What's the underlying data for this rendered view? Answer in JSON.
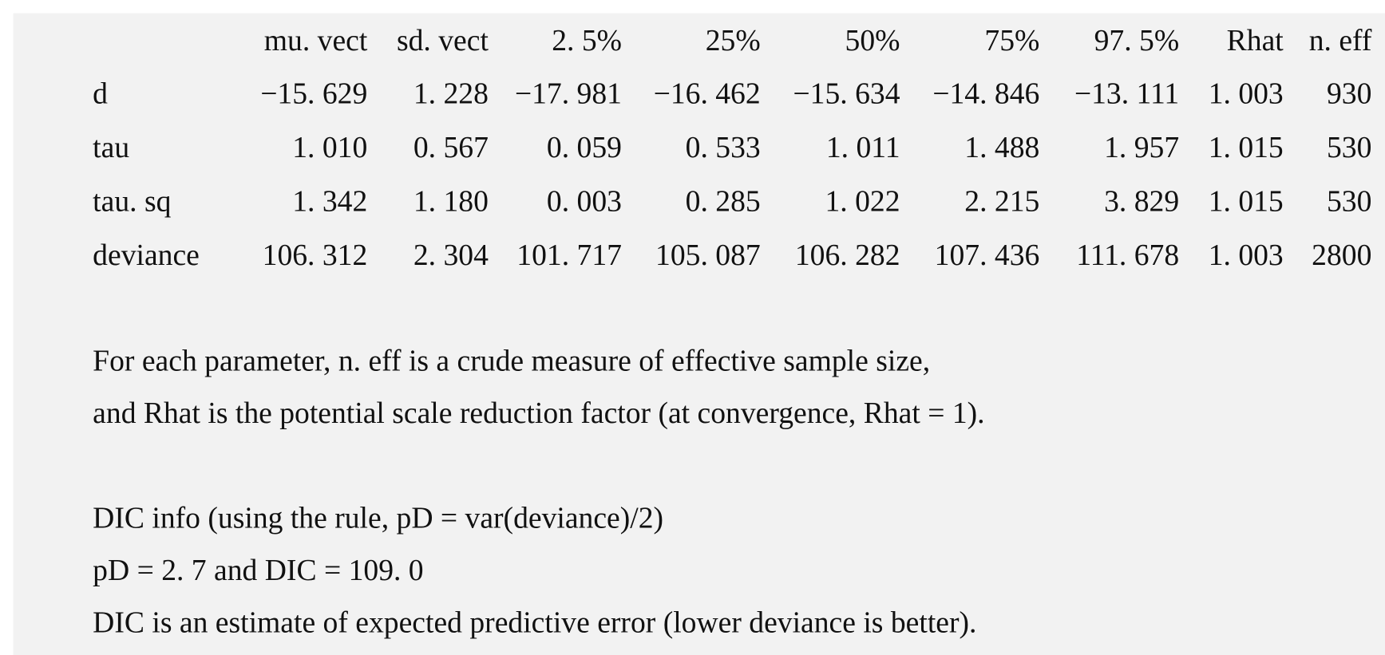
{
  "table": {
    "header": [
      "mu. vect",
      "sd. vect",
      "2. 5%",
      "25%",
      "50%",
      "75%",
      "97. 5%",
      "Rhat",
      "n. eff"
    ],
    "rows": [
      {
        "label": "d",
        "cells": [
          "−15. 629",
          "1. 228",
          "−17. 981",
          "−16. 462",
          "−15. 634",
          "−14. 846",
          "−13. 111",
          "1. 003",
          "930"
        ]
      },
      {
        "label": "tau",
        "cells": [
          "1. 010",
          "0. 567",
          "0. 059",
          "0. 533",
          "1. 011",
          "1. 488",
          "1. 957",
          "1. 015",
          "530"
        ]
      },
      {
        "label": "tau. sq",
        "cells": [
          "1. 342",
          "1. 180",
          "0. 003",
          "0. 285",
          "1. 022",
          "2. 215",
          "3. 829",
          "1. 015",
          "530"
        ]
      },
      {
        "label": "deviance",
        "cells": [
          "106. 312",
          "2. 304",
          "101. 717",
          "105. 087",
          "106. 282",
          "107. 436",
          "111. 678",
          "1. 003",
          "2800"
        ]
      }
    ]
  },
  "notes": [
    "For each parameter, n. eff is a crude measure of effective sample size,",
    "and Rhat is the potential scale reduction factor (at convergence, Rhat = 1)."
  ],
  "dic": [
    "DIC info (using the rule, pD = var(deviance)/2)",
    "pD = 2. 7 and DIC = 109. 0",
    "DIC is an estimate of expected predictive error (lower deviance is better)."
  ]
}
